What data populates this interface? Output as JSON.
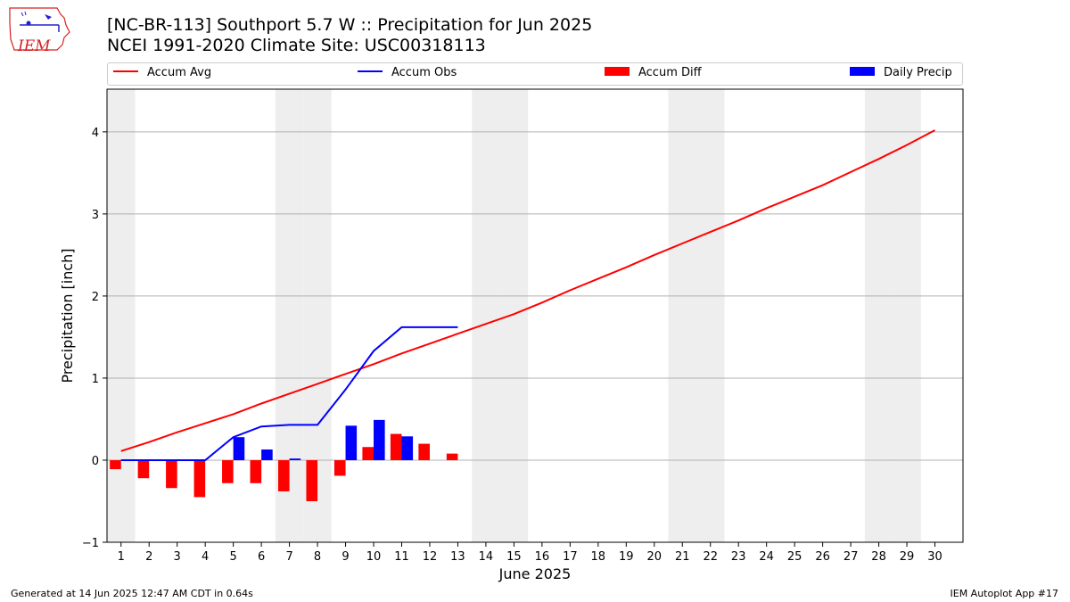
{
  "title_line1": "[NC-BR-113] Southport 5.7 W :: Precipitation for Jun 2025",
  "title_line2": "NCEI 1991-2020 Climate Site: USC00318113",
  "footer_left": "Generated at 14 Jun 2025 12:47 AM CDT in 0.64s",
  "footer_right": "IEM Autoplot App #17",
  "logo_text": "IEM",
  "colors": {
    "avg": "#ff0000",
    "obs": "#0000ff",
    "diff": "#ff0000",
    "daily": "#0000ff",
    "weekend_shade": "#eeeeee",
    "grid": "#b0b0b0"
  },
  "chart_data": {
    "type": "line",
    "xlabel": "June 2025",
    "ylabel": "Precipitation [inch]",
    "xlim": [
      0.5,
      31
    ],
    "ylim": [
      -1,
      4.52
    ],
    "yticks": [
      -1,
      0,
      1,
      2,
      3,
      4
    ],
    "xticks": [
      1,
      2,
      3,
      4,
      5,
      6,
      7,
      8,
      9,
      10,
      11,
      12,
      13,
      14,
      15,
      16,
      17,
      18,
      19,
      20,
      21,
      22,
      23,
      24,
      25,
      26,
      27,
      28,
      29,
      30
    ],
    "grid": "horizontal",
    "legend_position": "top",
    "legend": [
      "Accum Avg",
      "Accum Obs",
      "Accum Diff",
      "Daily Precip"
    ],
    "weekend_shaded_days": [
      1,
      7,
      8,
      14,
      15,
      21,
      22,
      28,
      29
    ],
    "accum_avg": {
      "x": [
        1,
        2,
        3,
        4,
        5,
        6,
        7,
        8,
        9,
        10,
        11,
        12,
        13,
        14,
        15,
        16,
        17,
        18,
        19,
        20,
        21,
        22,
        23,
        24,
        25,
        26,
        27,
        28,
        29,
        30
      ],
      "y": [
        0.11,
        0.22,
        0.34,
        0.45,
        0.56,
        0.69,
        0.81,
        0.93,
        1.05,
        1.17,
        1.3,
        1.42,
        1.54,
        1.66,
        1.78,
        1.92,
        2.07,
        2.21,
        2.35,
        2.5,
        2.64,
        2.78,
        2.92,
        3.07,
        3.21,
        3.35,
        3.51,
        3.67,
        3.84,
        4.02
      ]
    },
    "accum_obs": {
      "x": [
        1,
        2,
        3,
        4,
        5,
        6,
        7,
        8,
        9,
        10,
        11,
        12,
        13
      ],
      "y": [
        0.0,
        0.0,
        0.0,
        0.0,
        0.28,
        0.41,
        0.43,
        0.43,
        0.86,
        1.33,
        1.62,
        1.62,
        1.62
      ]
    },
    "accum_diff": {
      "x": [
        1,
        2,
        3,
        4,
        5,
        6,
        7,
        8,
        9,
        10,
        11,
        12,
        13
      ],
      "y": [
        -0.11,
        -0.22,
        -0.34,
        -0.45,
        -0.28,
        -0.28,
        -0.38,
        -0.5,
        -0.19,
        0.16,
        0.32,
        0.2,
        0.08
      ]
    },
    "daily_precip": {
      "x": [
        5,
        6,
        7,
        9,
        10,
        11
      ],
      "y": [
        0.28,
        0.13,
        0.02,
        0.42,
        0.49,
        0.29
      ]
    }
  }
}
